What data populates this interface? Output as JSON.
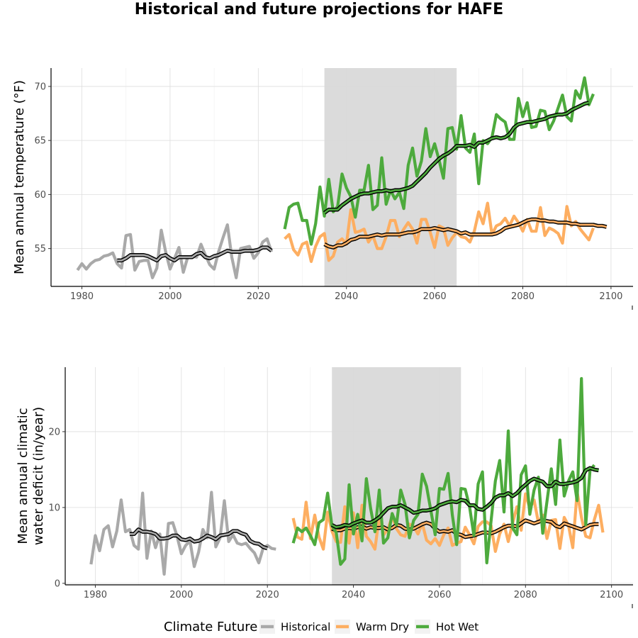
{
  "title": "Historical and future projections for HAFE",
  "legend": {
    "title": "Climate Future",
    "items": [
      {
        "name": "Historical",
        "color": "#a9a9a9"
      },
      {
        "name": "Warm Dry",
        "color": "#fdae61"
      },
      {
        "name": "Hot Wet",
        "color": "#4daa3d"
      }
    ]
  },
  "chart_data": [
    {
      "type": "line",
      "title": "",
      "xlabel": "",
      "ylabel": "Mean annual temperature (°F)",
      "xlim": [
        1973,
        2105
      ],
      "ylim": [
        51.5,
        71.7
      ],
      "x_ticks": [
        1980,
        2000,
        2020,
        2040,
        2060,
        2080,
        2100
      ],
      "y_ticks": [
        55,
        60,
        65,
        70
      ],
      "shaded_period": [
        2035,
        2065
      ],
      "grid": true,
      "series": [
        {
          "name": "Historical",
          "x_start": 1979,
          "values": [
            53.0,
            53.6,
            53.1,
            53.6,
            53.9,
            54.0,
            54.3,
            54.4,
            54.6,
            53.6,
            53.2,
            56.2,
            56.3,
            53.0,
            53.8,
            53.9,
            53.9,
            52.3,
            53.2,
            56.7,
            54.7,
            53.1,
            54.1,
            55.1,
            52.8,
            54.2,
            54.3,
            54.2,
            55.4,
            54.4,
            53.5,
            53.1,
            54.7,
            56.0,
            57.2,
            54.2,
            52.3,
            55.0,
            55.1,
            55.2,
            54.1,
            54.6,
            55.6,
            55.9,
            54.7
          ]
        },
        {
          "name": "Historical smoothed",
          "x_start": 1988,
          "values": [
            53.9,
            53.9,
            54.1,
            54.4,
            54.4,
            54.4,
            54.4,
            54.3,
            54.1,
            53.9,
            54.3,
            54.4,
            54.1,
            53.9,
            54.2,
            54.2,
            54.2,
            54.2,
            54.5,
            54.6,
            54.2,
            54.1,
            54.3,
            54.4,
            54.6,
            54.8,
            54.7,
            54.7,
            54.7,
            54.8,
            54.8,
            54.8,
            54.9,
            55.1,
            55.1,
            54.8
          ]
        },
        {
          "name": "Warm Dry",
          "x_start": 2026,
          "values": [
            55.9,
            56.3,
            54.9,
            54.4,
            55.4,
            55.6,
            53.8,
            55.2,
            56.1,
            56.4,
            53.9,
            54.3,
            55.6,
            55.9,
            55.4,
            58.6,
            56.5,
            56.6,
            56.8,
            55.6,
            56.2,
            55.0,
            55.0,
            56.1,
            57.6,
            57.6,
            56.1,
            56.8,
            57.4,
            56.8,
            55.5,
            57.7,
            57.7,
            56.5,
            55.1,
            57.1,
            56.9,
            55.3,
            56.0,
            56.5,
            56.1,
            56.0,
            55.6,
            56.6,
            58.4,
            57.3,
            59.2,
            56.3,
            57.1,
            57.3,
            57.8,
            57.1,
            58.0,
            57.4,
            56.6,
            57.7,
            56.6,
            56.6,
            58.8,
            56.2,
            56.9,
            56.7,
            56.4,
            55.5,
            58.9,
            57.1,
            57.5,
            56.8,
            56.3,
            55.8,
            56.9
          ]
        },
        {
          "name": "Warm Dry smoothed",
          "x_start": 2035,
          "values": [
            55.4,
            55.2,
            55.1,
            55.3,
            55.3,
            55.5,
            55.8,
            55.9,
            56.1,
            56.1,
            56.1,
            56.2,
            56.3,
            56.2,
            56.3,
            56.3,
            56.3,
            56.3,
            56.4,
            56.5,
            56.5,
            56.6,
            56.8,
            56.8,
            56.8,
            56.9,
            56.8,
            56.7,
            56.8,
            56.7,
            56.6,
            56.4,
            56.5,
            56.3,
            56.3,
            56.3,
            56.3,
            56.3,
            56.3,
            56.4,
            56.6,
            56.9,
            57.0,
            57.1,
            57.2,
            57.4,
            57.6,
            57.7,
            57.7,
            57.6,
            57.6,
            57.5,
            57.5,
            57.4,
            57.4,
            57.4,
            57.3,
            57.3,
            57.2,
            57.2,
            57.2,
            57.2,
            57.1,
            57.1,
            57.0
          ]
        },
        {
          "name": "Hot Wet",
          "x_start": 2026,
          "values": [
            56.8,
            58.8,
            59.1,
            59.2,
            57.6,
            57.6,
            55.4,
            57.3,
            60.7,
            58.0,
            61.4,
            58.4,
            58.9,
            61.9,
            60.6,
            59.8,
            57.9,
            60.4,
            60.4,
            62.7,
            58.6,
            59.0,
            63.4,
            59.1,
            60.4,
            59.6,
            60.2,
            58.7,
            62.7,
            64.3,
            61.7,
            63.1,
            66.1,
            63.5,
            64.7,
            63.2,
            61.5,
            66.1,
            66.2,
            64.2,
            67.3,
            64.3,
            63.9,
            65.6,
            61.0,
            65.0,
            64.7,
            65.3,
            67.4,
            67.0,
            66.7,
            65.1,
            65.1,
            68.9,
            67.2,
            68.5,
            66.2,
            66.3,
            67.8,
            67.7,
            66.0,
            66.8,
            68.0,
            69.2,
            67.2,
            66.8,
            69.6,
            68.9,
            70.8,
            68.3,
            69.3
          ]
        },
        {
          "name": "Hot Wet smoothed",
          "x_start": 2035,
          "values": [
            58.3,
            58.6,
            58.6,
            58.6,
            59.0,
            59.3,
            59.6,
            59.8,
            60.0,
            60.1,
            60.1,
            60.2,
            60.3,
            60.3,
            60.4,
            60.3,
            60.4,
            60.4,
            60.5,
            60.6,
            60.8,
            61.2,
            61.6,
            62.0,
            62.5,
            62.9,
            63.3,
            63.6,
            63.8,
            64.1,
            64.5,
            64.5,
            64.5,
            64.6,
            64.4,
            64.8,
            64.8,
            65.0,
            65.2,
            65.3,
            65.2,
            65.3,
            65.6,
            66.2,
            66.5,
            66.6,
            66.7,
            66.7,
            66.8,
            66.9,
            67.0,
            67.2,
            67.3,
            67.4,
            67.4,
            67.5,
            67.8,
            68.0,
            68.2,
            68.4,
            68.5
          ]
        }
      ]
    },
    {
      "type": "line",
      "title": "",
      "xlabel": "",
      "ylabel": "Mean annual climatic water deficit (in/year)",
      "ylabel_lines": [
        "Mean annual climatic",
        "water deficit (in/year)"
      ],
      "xlim": [
        1973,
        2105
      ],
      "ylim": [
        -0.2,
        28.5
      ],
      "x_ticks": [
        1980,
        2000,
        2020,
        2040,
        2060,
        2080,
        2100
      ],
      "y_ticks": [
        0,
        10,
        20
      ],
      "shaded_period": [
        2035,
        2065
      ],
      "grid": true,
      "series": [
        {
          "name": "Historical",
          "x_start": 1979,
          "values": [
            2.5,
            6.3,
            4.3,
            7.1,
            7.6,
            4.8,
            6.9,
            11.0,
            6.8,
            7.1,
            5.0,
            4.5,
            11.9,
            3.3,
            6.9,
            4.7,
            6.5,
            1.2,
            7.9,
            8.0,
            6.2,
            3.9,
            5.0,
            5.6,
            2.2,
            4.1,
            7.1,
            6.0,
            12.0,
            4.8,
            6.0,
            10.9,
            5.5,
            6.4,
            5.3,
            5.1,
            5.3,
            4.6,
            4.0,
            2.7,
            4.6,
            5.0,
            4.6,
            4.5
          ]
        },
        {
          "name": "Historical smoothed",
          "x_start": 1988,
          "values": [
            6.5,
            6.5,
            7.1,
            6.8,
            6.8,
            6.7,
            6.5,
            5.9,
            5.9,
            6.0,
            6.3,
            6.3,
            5.8,
            5.7,
            5.9,
            5.5,
            5.6,
            5.9,
            6.3,
            6.1,
            5.8,
            6.3,
            6.4,
            6.5,
            6.9,
            6.9,
            6.6,
            6.4,
            5.6,
            5.3,
            5.2,
            4.8,
            4.6
          ]
        },
        {
          "name": "Warm Dry",
          "x_start": 2026,
          "values": [
            8.6,
            6.1,
            5.8,
            10.7,
            5.9,
            9.0,
            6.1,
            4.5,
            9.4,
            6.9,
            5.5,
            5.4,
            10.1,
            5.3,
            9.3,
            4.7,
            10.3,
            6.2,
            5.5,
            4.5,
            8.8,
            6.4,
            7.1,
            8.8,
            7.2,
            6.4,
            6.2,
            7.8,
            7.5,
            6.5,
            7.9,
            5.7,
            5.2,
            5.9,
            5.0,
            6.4,
            7.3,
            5.0,
            5.3,
            5.5,
            7.4,
            6.4,
            5.2,
            7.5,
            8.1,
            8.1,
            7.6,
            4.2,
            6.5,
            7.8,
            5.5,
            7.9,
            10.1,
            7.0,
            11.8,
            9.9,
            11.0,
            8.0,
            9.0,
            5.9,
            8.3,
            8.4,
            4.6,
            8.7,
            7.6,
            4.7,
            12.1,
            8.7,
            6.2,
            6.0,
            8.4,
            10.3,
            6.7
          ]
        },
        {
          "name": "Warm Dry smoothed",
          "x_start": 2035,
          "values": [
            7.2,
            7.0,
            7.0,
            7.2,
            7.3,
            7.2,
            7.4,
            7.5,
            7.2,
            7.4,
            7.3,
            7.3,
            7.4,
            7.1,
            7.3,
            7.7,
            7.6,
            7.2,
            7.1,
            7.2,
            7.5,
            7.8,
            8.0,
            7.8,
            7.2,
            6.8,
            6.9,
            6.8,
            7.0,
            6.5,
            6.4,
            6.1,
            6.2,
            6.3,
            6.5,
            6.7,
            6.7,
            6.6,
            6.8,
            7.1,
            7.4,
            7.6,
            7.6,
            7.5,
            7.9,
            8.3,
            8.1,
            7.9,
            8.1,
            8.3,
            8.2,
            8.1,
            7.6,
            7.4,
            7.9,
            7.7,
            7.5,
            7.3,
            7.1,
            7.4,
            7.7,
            7.8,
            7.8
          ]
        },
        {
          "name": "Hot Wet",
          "x_start": 2026,
          "values": [
            5.3,
            7.3,
            6.8,
            7.3,
            6.3,
            5.1,
            8.0,
            8.4,
            11.9,
            7.6,
            6.7,
            2.5,
            3.2,
            13.0,
            6.5,
            9.1,
            5.6,
            13.8,
            9.9,
            6.8,
            12.3,
            5.3,
            6.0,
            9.2,
            7.7,
            12.3,
            10.4,
            6.0,
            8.3,
            9.1,
            14.4,
            12.8,
            9.6,
            6.4,
            12.5,
            12.4,
            14.5,
            9.0,
            5.1,
            12.5,
            12.4,
            10.1,
            6.3,
            13.1,
            14.7,
            2.7,
            8.3,
            13.5,
            16.2,
            9.4,
            20.1,
            7.3,
            6.4,
            14.3,
            15.5,
            9.1,
            12.3,
            14.0,
            6.6,
            10.8,
            15.1,
            10.4,
            18.9,
            11.5,
            13.5,
            14.7,
            10.9,
            27.0,
            7.7,
            14.9,
            15.6
          ]
        },
        {
          "name": "Hot Wet smoothed",
          "x_start": 2035,
          "values": [
            7.7,
            7.4,
            7.5,
            7.7,
            7.6,
            7.9,
            8.1,
            8.3,
            8.0,
            8.0,
            8.3,
            8.7,
            9.3,
            9.9,
            10.1,
            10.1,
            10.3,
            10.0,
            9.7,
            9.3,
            9.4,
            9.6,
            9.6,
            9.7,
            9.9,
            10.3,
            10.5,
            10.7,
            10.8,
            10.7,
            11.0,
            10.9,
            10.3,
            10.3,
            9.8,
            9.7,
            10.1,
            10.6,
            11.3,
            11.6,
            11.6,
            11.9,
            11.5,
            11.9,
            12.5,
            13.0,
            13.5,
            13.8,
            13.6,
            13.4,
            12.8,
            12.8,
            13.4,
            13.1,
            13.1,
            13.2,
            13.3,
            13.5,
            13.9,
            14.9,
            15.2,
            15.0,
            14.9
          ]
        }
      ]
    }
  ]
}
